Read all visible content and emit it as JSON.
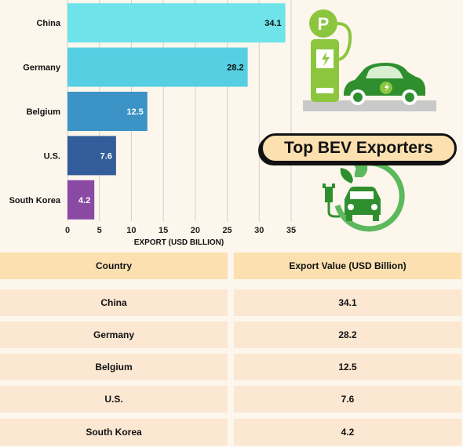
{
  "title": "Top BEV Exporters",
  "chart_data": {
    "type": "bar",
    "orientation": "horizontal",
    "categories": [
      "China",
      "Germany",
      "Belgium",
      "U.S.",
      "South Korea"
    ],
    "values": [
      34.1,
      28.2,
      12.5,
      7.6,
      4.2
    ],
    "value_labels": [
      "34.1",
      "28.2",
      "12.5",
      "7.6",
      "4.2"
    ],
    "bar_colors": [
      "#6fe3ea",
      "#56cfe3",
      "#3b93c6",
      "#335d9a",
      "#8a4aa3"
    ],
    "xlabel": "EXPORT (USD BILLION)",
    "ylabel": "",
    "xlim": [
      0,
      35
    ],
    "xticks": [
      "0",
      "5",
      "10",
      "15",
      "20",
      "25",
      "30",
      "35"
    ],
    "xtick_values": [
      0,
      5,
      10,
      15,
      20,
      25,
      30,
      35
    ],
    "grid": true
  },
  "table": {
    "headers": [
      "Country",
      "Export Value (USD Billion)"
    ],
    "rows": [
      [
        "China",
        "34.1"
      ],
      [
        "Germany",
        "28.2"
      ],
      [
        "Belgium",
        "12.5"
      ],
      [
        "U.S.",
        "7.6"
      ],
      [
        "South Korea",
        "4.2"
      ]
    ]
  },
  "icons": {
    "charging_station": "ev-charging-station-icon",
    "car": "electric-car-icon",
    "eco_plug": "eco-plug-car-icon"
  },
  "colors": {
    "green": "#5cb85c",
    "dark_green": "#2f8f2f",
    "station_green": "#8cc63f"
  }
}
